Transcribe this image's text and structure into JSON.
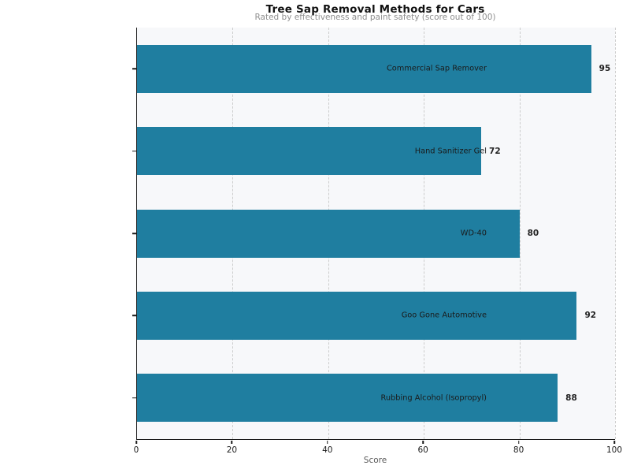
{
  "chart_data": {
    "type": "bar",
    "orientation": "horizontal",
    "title": "Tree Sap Removal Methods for Cars",
    "subtitle": "Rated by effectiveness and paint safety (score out of 100)",
    "xlabel": "Score",
    "xlim": [
      0,
      100
    ],
    "xticks": [
      0,
      20,
      40,
      60,
      80,
      100
    ],
    "grid": "vertical-dashed-on",
    "legend": "none",
    "bar_color": "#1f7ea0",
    "plot_bg_color": "#f7f8fa",
    "categories": [
      "Commercial Sap Remover",
      "Hand Sanitizer Gel",
      "WD-40",
      "Goo Gone Automotive",
      "Rubbing Alcohol (Isopropyl)"
    ],
    "values": [
      95,
      72,
      80,
      92,
      88
    ]
  }
}
